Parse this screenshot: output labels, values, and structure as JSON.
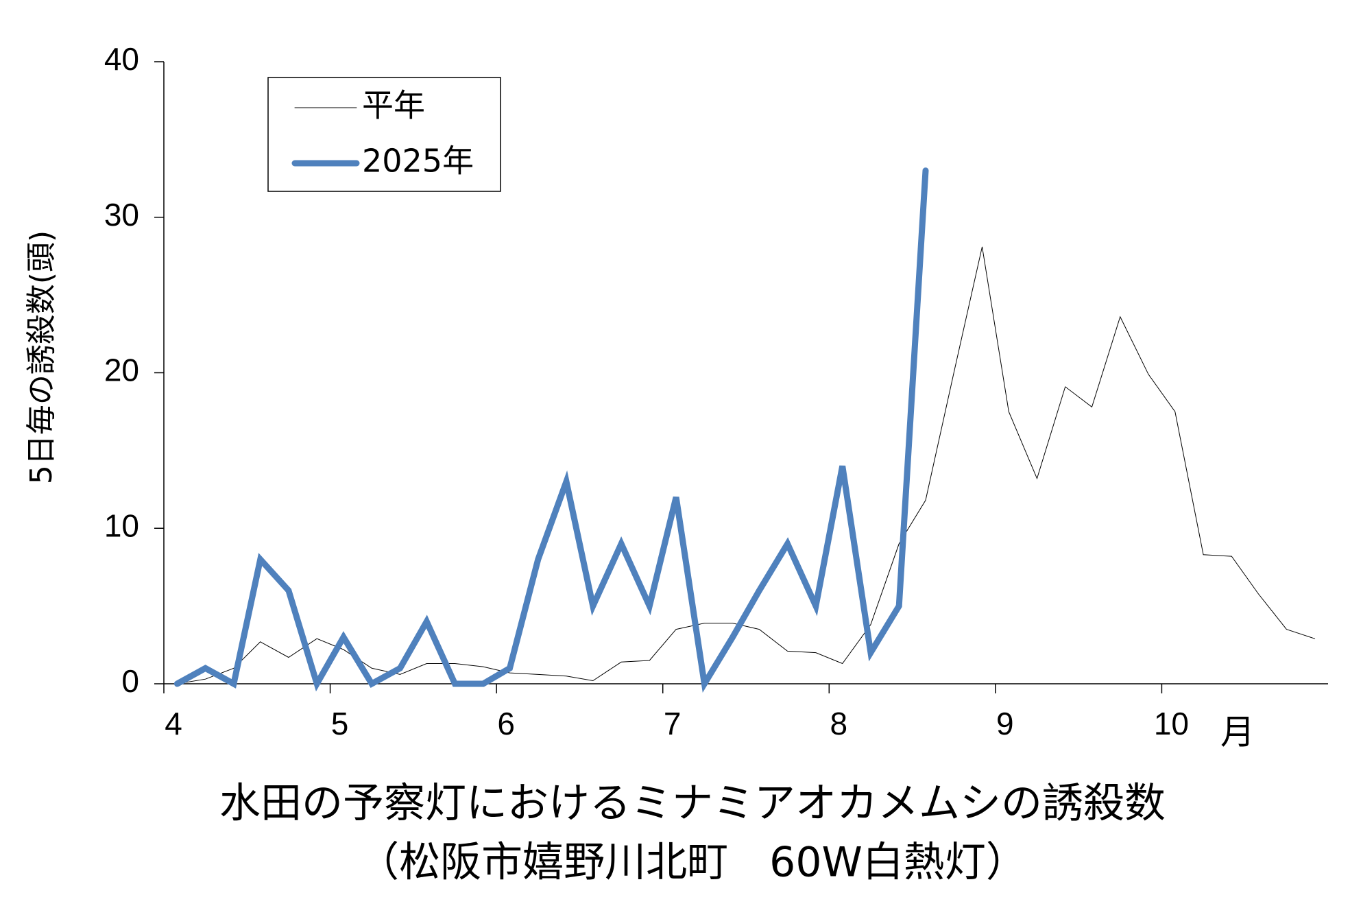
{
  "chart_data": {
    "type": "line",
    "y_label": "5日毎の誘殺数(頭)",
    "x_unit": "月",
    "caption": [
      "水田の予察灯におけるミナミアオカメムシの誘殺数",
      "（松阪市嬉野川北町　60W白熱灯）"
    ],
    "x": [
      4.08,
      4.25,
      4.42,
      4.58,
      4.75,
      4.92,
      5.08,
      5.25,
      5.42,
      5.58,
      5.75,
      5.92,
      6.08,
      6.25,
      6.42,
      6.58,
      6.75,
      6.92,
      7.08,
      7.25,
      7.42,
      7.58,
      7.75,
      7.92,
      8.08,
      8.25,
      8.42,
      8.58,
      8.75,
      8.92,
      9.08,
      9.25,
      9.42,
      9.58,
      9.75,
      9.92,
      10.08,
      10.25,
      10.42,
      10.58,
      10.75,
      10.92
    ],
    "series": [
      {
        "name": "平年",
        "color": "#000000",
        "width": 1,
        "values": [
          0,
          0.3,
          1,
          2.7,
          1.7,
          2.9,
          2.2,
          1,
          0.6,
          1.3,
          1.3,
          1.1,
          0.7,
          0.6,
          0.5,
          0.2,
          1.4,
          1.5,
          3.5,
          3.9,
          3.9,
          3.5,
          2.1,
          2,
          1.3,
          3.8,
          9,
          11.8,
          20,
          28.1,
          17.5,
          13.2,
          19.1,
          17.8,
          23.6,
          19.9,
          17.5,
          8.3,
          8.2,
          5.8,
          3.5,
          2.9
        ]
      },
      {
        "name": "2025年",
        "color": "#4f81bd",
        "width": 9,
        "values": [
          0,
          1,
          0,
          8,
          6,
          0,
          3,
          0,
          1,
          4,
          0,
          0,
          1,
          8,
          13,
          5,
          9,
          5,
          12,
          0,
          3,
          6,
          9,
          5,
          14,
          2,
          5,
          33,
          null,
          null,
          null,
          null,
          null,
          null,
          null,
          null,
          null,
          null,
          null,
          null,
          null,
          null
        ]
      }
    ],
    "xlim": [
      4,
      11
    ],
    "xticks": [
      4,
      5,
      6,
      7,
      8,
      9,
      10
    ],
    "ylim": [
      0,
      40
    ],
    "yticks": [
      0,
      10,
      20,
      30,
      40
    ],
    "legend": "top-left"
  }
}
